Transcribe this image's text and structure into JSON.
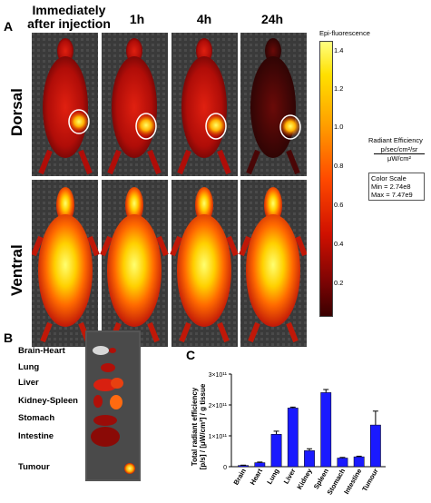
{
  "panel_a": {
    "letter": "A",
    "time_labels": [
      "Immediately after injection",
      "1h",
      "4h",
      "24h"
    ],
    "row_labels": [
      "Dorsal",
      "Ventral"
    ],
    "colorbar": {
      "title": "Epi-fluorescence",
      "ticks": [
        "1.4",
        "1.2",
        "1.0",
        "0.8",
        "0.6",
        "0.4",
        "0.2"
      ],
      "units_label": "Radiant Efficiency",
      "units_numerator": "p/sec/cm²/sr",
      "units_denominator": "μW/cm²",
      "scale_title": "Color Scale",
      "scale_min": "Min = 2.74e8",
      "scale_max": "Max = 7.47e9"
    }
  },
  "panel_b": {
    "letter": "B",
    "organs": [
      "Brain-Heart",
      "Lung",
      "Liver",
      "Kidney-Spleen",
      "Stomach",
      "Intestine",
      "Tumour"
    ]
  },
  "panel_c": {
    "letter": "C",
    "ylabel_line1": "Total radiant efficiency",
    "ylabel_line2": "[p/s] / [μW/cm²] / g tissue"
  },
  "chart_data": {
    "type": "bar",
    "categories": [
      "Brain",
      "Heart",
      "Lung",
      "Liver",
      "Kidney",
      "Spleen",
      "Stomach",
      "Intestine",
      "Tumour"
    ],
    "values": [
      4000000000.0,
      13000000000.0,
      105000000000.0,
      190000000000.0,
      52000000000.0,
      240000000000.0,
      28000000000.0,
      32000000000.0,
      135000000000.0
    ],
    "errors": [
      1000000000.0,
      2000000000.0,
      10000000000.0,
      3000000000.0,
      6000000000.0,
      10000000000.0,
      2000000000.0,
      2000000000.0,
      45000000000.0
    ],
    "ytick_labels": [
      "0",
      "1×10¹¹",
      "2×10¹¹",
      "3×10¹¹"
    ],
    "ylim": [
      0,
      300000000000.0
    ],
    "bar_color": "#1a1aff"
  }
}
